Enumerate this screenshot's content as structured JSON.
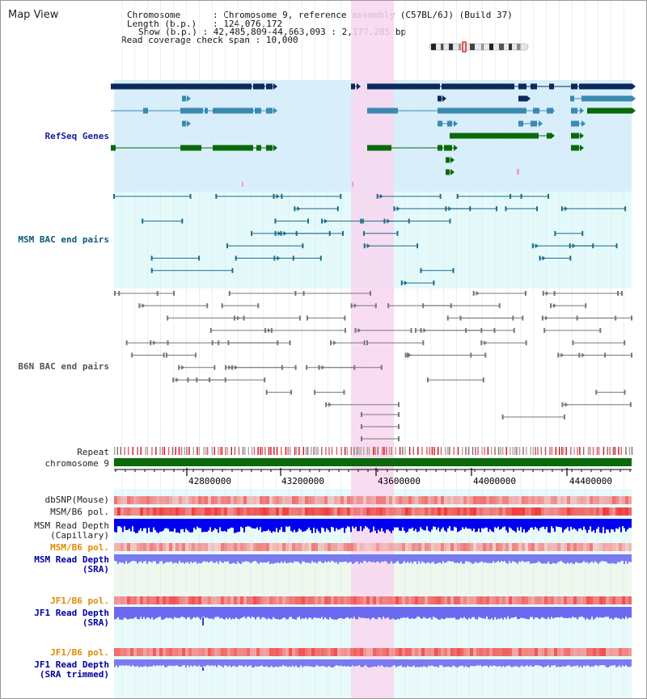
{
  "title": "Map View",
  "info": {
    "chromosome_key": "Chromosome",
    "chromosome_value": "Chromosome 9, reference assembly (C57BL/6J) (Build 37)",
    "length_key": "Length (b.p.)",
    "length_value": "124,076,172",
    "show_key": "Show (b.p.)",
    "show_value": "42,485,809-44,663,093 : 2,177,285 bp",
    "coverage_key": "Read coverage check span",
    "coverage_value": "10,000"
  },
  "tracks": {
    "refseq": "RefSeq Genes",
    "msm_bac": "MSM BAC end pairs",
    "b6n_bac": "B6N BAC end pairs",
    "repeat": "Repeat",
    "chromosome": "chromosome 9",
    "dbsnp": "dbSNP(Mouse)",
    "msm_b6_pol": "MSM/B6 pol.",
    "msm_depth_cap_1": "MSM Read Depth",
    "msm_depth_cap_2": "(Capillary)",
    "msm_b6_pol_2": "MSM/B6 pol.",
    "msm_depth_sra_1": "MSM Read Depth",
    "msm_depth_sra_2": "(SRA)",
    "jf1_b6_pol": "JF1/B6 pol.",
    "jf1_depth_sra_1": "JF1 Read Depth",
    "jf1_depth_sra_2": "(SRA)",
    "jf1_b6_pol_2": "JF1/B6 pol.",
    "jf1_depth_trim_1": "JF1 Read Depth",
    "jf1_depth_trim_2": "(SRA trimmed)"
  },
  "ruler_ticks": [
    "42800000",
    "43200000",
    "43600000",
    "44000000",
    "44400000"
  ],
  "colors": {
    "refseq_bg": "#d8eefa",
    "bac_bg": "#e4fafa",
    "highlight": "#f9d6f0",
    "gene_dark": "#0a2a5c",
    "gene_mid": "#3a8ab0",
    "gene_green": "#0a6a0a",
    "msm_label": "#0a5a7a",
    "b6n_label": "#555555",
    "orange_label": "#e08a00",
    "blue_label": "#0000a0",
    "refseq_label": "#1a1aa0"
  }
}
